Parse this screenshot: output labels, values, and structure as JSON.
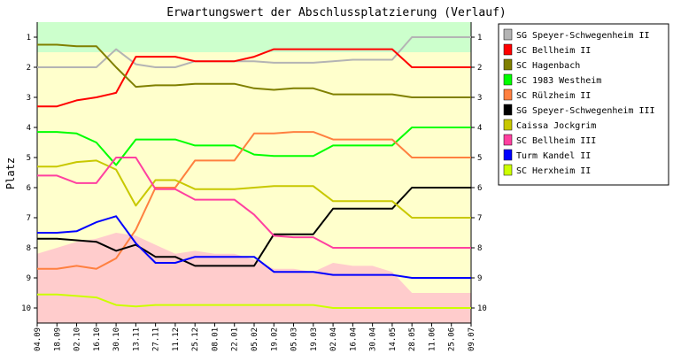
{
  "chart_data": {
    "type": "line",
    "title": "Erwartungswert der Abschlussplatzierung (Verlauf)",
    "xlabel": "",
    "ylabel": "Platz",
    "ylim": [
      10.5,
      0.5
    ],
    "yticks": [
      1,
      2,
      3,
      4,
      5,
      6,
      7,
      8,
      9,
      10
    ],
    "categories": [
      "04.09",
      "18.09",
      "02.10",
      "16.10",
      "30.10",
      "13.11",
      "27.11",
      "11.12",
      "25.12",
      "08.01",
      "22.01",
      "05.02",
      "19.02",
      "05.03",
      "19.03",
      "02.04",
      "16.04",
      "30.04",
      "14.05",
      "28.05",
      "11.06",
      "25.06",
      "09.07"
    ],
    "zones": [
      {
        "from": 0.5,
        "to": 1.5,
        "color": "#ccffcc"
      },
      {
        "from": 1.5,
        "to": 10.5,
        "color": "#ffffcc"
      }
    ],
    "bottom_area": {
      "color": "#ffcccc",
      "values": [
        8.2,
        8.0,
        7.8,
        7.7,
        7.5,
        7.6,
        7.9,
        8.2,
        8.1,
        8.2,
        8.2,
        8.4,
        8.7,
        8.7,
        8.8,
        8.5,
        8.6,
        8.6,
        8.8,
        9.5,
        9.5,
        9.5,
        9.5
      ]
    },
    "series": [
      {
        "name": "SG Speyer-Schwegenheim   II",
        "color": "#b4b4b4",
        "values": [
          2.0,
          2.0,
          2.0,
          2.0,
          1.4,
          1.9,
          2.0,
          2.0,
          1.8,
          1.8,
          1.8,
          1.8,
          1.85,
          1.85,
          1.85,
          1.8,
          1.75,
          1.75,
          1.75,
          1.0,
          1.0,
          1.0,
          1.0
        ]
      },
      {
        "name": "SC Bellheim   II",
        "color": "#ff0000",
        "values": [
          3.3,
          3.3,
          3.1,
          3.0,
          2.85,
          1.65,
          1.65,
          1.65,
          1.8,
          1.8,
          1.8,
          1.65,
          1.4,
          1.4,
          1.4,
          1.4,
          1.4,
          1.4,
          1.4,
          2.0,
          2.0,
          2.0,
          2.0
        ]
      },
      {
        "name": "SC Hagenbach",
        "color": "#808000",
        "values": [
          1.25,
          1.25,
          1.3,
          1.3,
          2.0,
          2.65,
          2.6,
          2.6,
          2.55,
          2.55,
          2.55,
          2.7,
          2.75,
          2.7,
          2.7,
          2.9,
          2.9,
          2.9,
          2.9,
          3.0,
          3.0,
          3.0,
          3.0
        ]
      },
      {
        "name": "SC 1983 Westheim",
        "color": "#00ff00",
        "values": [
          4.15,
          4.15,
          4.2,
          4.5,
          5.25,
          4.4,
          4.4,
          4.4,
          4.6,
          4.6,
          4.6,
          4.9,
          4.95,
          4.95,
          4.95,
          4.6,
          4.6,
          4.6,
          4.6,
          4.0,
          4.0,
          4.0,
          4.0
        ]
      },
      {
        "name": "SC Rülzheim   II",
        "color": "#ff8040",
        "values": [
          8.7,
          8.7,
          8.6,
          8.7,
          8.35,
          7.4,
          6.0,
          6.0,
          5.1,
          5.1,
          5.1,
          4.2,
          4.2,
          4.15,
          4.15,
          4.4,
          4.4,
          4.4,
          4.4,
          5.0,
          5.0,
          5.0,
          5.0
        ]
      },
      {
        "name": "SG Speyer-Schwegenheim   III",
        "color": "#000000",
        "values": [
          7.7,
          7.7,
          7.75,
          7.8,
          8.1,
          7.9,
          8.3,
          8.3,
          8.6,
          8.6,
          8.6,
          8.6,
          7.55,
          7.55,
          7.55,
          6.7,
          6.7,
          6.7,
          6.7,
          6.0,
          6.0,
          6.0,
          6.0
        ]
      },
      {
        "name": "Caissa Jockgrim",
        "color": "#c8c800",
        "values": [
          5.3,
          5.3,
          5.15,
          5.1,
          5.4,
          6.6,
          5.75,
          5.75,
          6.05,
          6.05,
          6.05,
          6.0,
          5.95,
          5.95,
          5.95,
          6.45,
          6.45,
          6.45,
          6.45,
          7.0,
          7.0,
          7.0,
          7.0
        ]
      },
      {
        "name": "SC Bellheim   III",
        "color": "#ff40a0",
        "values": [
          5.6,
          5.6,
          5.85,
          5.85,
          5.0,
          5.0,
          6.05,
          6.05,
          6.4,
          6.4,
          6.4,
          6.9,
          7.6,
          7.65,
          7.65,
          8.0,
          8.0,
          8.0,
          8.0,
          8.0,
          8.0,
          8.0,
          8.0
        ]
      },
      {
        "name": "Turm Kandel   II",
        "color": "#0000ff",
        "values": [
          7.5,
          7.5,
          7.45,
          7.15,
          6.95,
          7.85,
          8.5,
          8.5,
          8.3,
          8.3,
          8.3,
          8.3,
          8.8,
          8.8,
          8.8,
          8.9,
          8.9,
          8.9,
          8.9,
          9.0,
          9.0,
          9.0,
          9.0
        ]
      },
      {
        "name": "SC Herxheim   II",
        "color": "#ccff00",
        "values": [
          9.55,
          9.55,
          9.6,
          9.65,
          9.9,
          9.95,
          9.9,
          9.9,
          9.9,
          9.9,
          9.9,
          9.9,
          9.9,
          9.9,
          9.9,
          10.0,
          10.0,
          10.0,
          10.0,
          10.0,
          10.0,
          10.0,
          10.0
        ]
      }
    ],
    "grid": false,
    "legend": "right"
  }
}
